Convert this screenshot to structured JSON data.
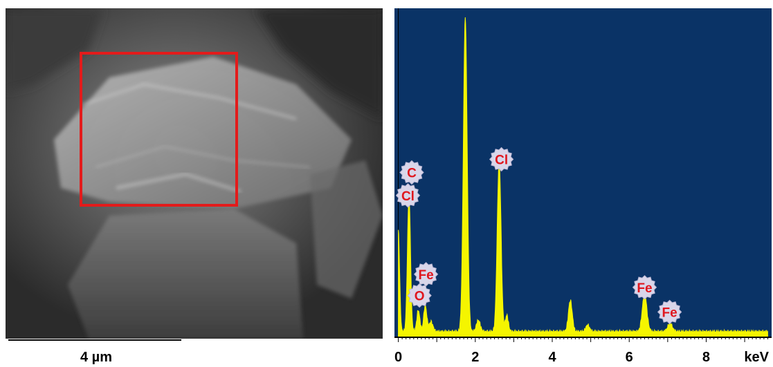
{
  "sem": {
    "scale_label": "4 µm",
    "roi_color": "#e31b1b"
  },
  "chart_data": {
    "type": "line",
    "title": "",
    "xlabel": "keV",
    "ylabel": "",
    "xlim": [
      -0.1,
      9.7
    ],
    "ylim": [
      0,
      100
    ],
    "x_ticks": [
      0,
      2,
      4,
      6,
      8
    ],
    "x_tick_labels": [
      "0",
      "2",
      "4",
      "6",
      "8"
    ],
    "unit_label": "keV",
    "grid": false,
    "background": "#0a3366",
    "fill_color": "#f5f500",
    "series": [
      {
        "peaks": [
          {
            "x": 0.0,
            "y": 31,
            "w": 0.035
          },
          {
            "x": 0.277,
            "y": 41.5,
            "w": 0.04
          },
          {
            "x": 0.52,
            "y": 6.5,
            "w": 0.04
          },
          {
            "x": 0.7,
            "y": 8,
            "w": 0.04
          },
          {
            "x": 0.85,
            "y": 3,
            "w": 0.05
          },
          {
            "x": 1.74,
            "y": 96,
            "w": 0.05
          },
          {
            "x": 2.08,
            "y": 3.5,
            "w": 0.05
          },
          {
            "x": 2.62,
            "y": 52,
            "w": 0.05
          },
          {
            "x": 2.82,
            "y": 5,
            "w": 0.04
          },
          {
            "x": 4.47,
            "y": 9.5,
            "w": 0.05
          },
          {
            "x": 4.92,
            "y": 2,
            "w": 0.05
          },
          {
            "x": 6.4,
            "y": 11.5,
            "w": 0.06
          },
          {
            "x": 7.06,
            "y": 2.5,
            "w": 0.06
          }
        ],
        "baseline": 1.5
      }
    ],
    "annotations": [
      {
        "text": "C",
        "x": 0.35,
        "y": 50
      },
      {
        "text": "Cl",
        "x": 0.25,
        "y": 43
      },
      {
        "text": "Cl",
        "x": 2.68,
        "y": 54
      },
      {
        "text": "Fe",
        "x": 0.72,
        "y": 19
      },
      {
        "text": "O",
        "x": 0.55,
        "y": 12.5
      },
      {
        "text": "Fe",
        "x": 6.4,
        "y": 15
      },
      {
        "text": "Fe",
        "x": 7.05,
        "y": 7.5
      }
    ]
  }
}
